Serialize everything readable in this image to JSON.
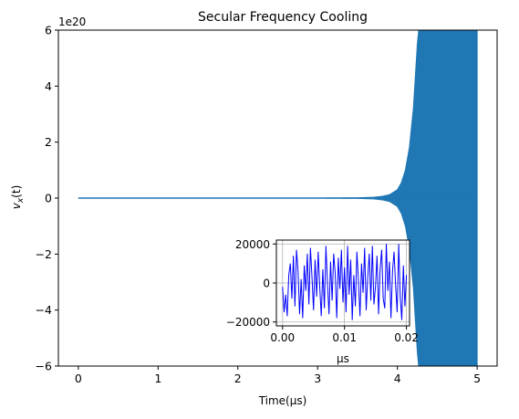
{
  "chart_data": [
    {
      "type": "line",
      "title": "Secular Frequency Cooling",
      "xlabel": "Time(μs)",
      "ylabel": "v_x(t)",
      "y_offset_label": "1e20",
      "xlim": [
        -0.25,
        5.25
      ],
      "ylim": [
        -6,
        6
      ],
      "x_ticks": [
        0,
        1,
        2,
        3,
        4,
        5
      ],
      "x_tick_labels": [
        "0",
        "1",
        "2",
        "3",
        "4",
        "5"
      ],
      "y_ticks": [
        -6,
        -4,
        -2,
        0,
        2,
        4,
        6
      ],
      "y_tick_labels": [
        "−6",
        "−4",
        "−2",
        "0",
        "2",
        "4",
        "6"
      ],
      "grid": false,
      "series": [
        {
          "color": "#1f77b4",
          "description": "oscillation envelope growing exponentially after ~3.5 μs",
          "x": [
            0.0,
            3.0,
            3.5,
            3.7,
            3.8,
            3.9,
            4.0,
            4.05,
            4.1,
            4.15,
            4.2,
            4.25,
            4.3,
            5.0
          ],
          "envelope": [
            0.0,
            0.0,
            0.01,
            0.03,
            0.06,
            0.12,
            0.3,
            0.55,
            1.0,
            1.8,
            3.2,
            5.5,
            7.0,
            7.0
          ]
        }
      ]
    },
    {
      "type": "line",
      "xlabel": "μs",
      "xlim": [
        -0.001,
        0.0205
      ],
      "ylim": [
        -22000,
        22000
      ],
      "x_ticks": [
        0.0,
        0.01,
        0.02
      ],
      "x_tick_labels": [
        "0.00",
        "0.01",
        "0.02"
      ],
      "y_ticks": [
        -20000,
        0,
        20000
      ],
      "y_tick_labels": [
        "−20000",
        "0",
        "20000"
      ],
      "grid": true,
      "series": [
        {
          "color": "#0000ff",
          "x": [
            0.0,
            0.00025,
            0.0005,
            0.00075,
            0.001,
            0.00125,
            0.0015,
            0.00175,
            0.002,
            0.00225,
            0.0025,
            0.00275,
            0.003,
            0.00325,
            0.0035,
            0.00375,
            0.004,
            0.00425,
            0.0045,
            0.00475,
            0.005,
            0.00525,
            0.0055,
            0.00575,
            0.006,
            0.00625,
            0.0065,
            0.00675,
            0.007,
            0.00725,
            0.0075,
            0.00775,
            0.008,
            0.00825,
            0.0085,
            0.00875,
            0.009,
            0.00925,
            0.0095,
            0.00975,
            0.01,
            0.01025,
            0.0105,
            0.01075,
            0.011,
            0.01125,
            0.0115,
            0.01175,
            0.012,
            0.01225,
            0.0125,
            0.01275,
            0.013,
            0.01325,
            0.0135,
            0.01375,
            0.014,
            0.01425,
            0.0145,
            0.01475,
            0.015,
            0.01525,
            0.0155,
            0.01575,
            0.016,
            0.01625,
            0.0165,
            0.01675,
            0.017,
            0.01725,
            0.0175,
            0.01775,
            0.018,
            0.01825,
            0.0185,
            0.01875,
            0.019,
            0.01925,
            0.0195,
            0.01975,
            0.02
          ],
          "y": [
            -2000,
            -15000,
            -6000,
            -17000,
            4000,
            10000,
            -8000,
            14000,
            -12000,
            17000,
            6000,
            -16000,
            2000,
            -18000,
            9000,
            -4000,
            15000,
            -11000,
            18000,
            3000,
            -14000,
            12000,
            -7000,
            16000,
            -2000,
            -17000,
            7000,
            -13000,
            19000,
            0,
            -16000,
            11000,
            -9000,
            15000,
            5000,
            -18000,
            13000,
            -3000,
            17000,
            -10000,
            8000,
            -15000,
            19000,
            -6000,
            12000,
            -19000,
            4000,
            -12000,
            16000,
            1000,
            -17000,
            10000,
            -5000,
            18000,
            -14000,
            3000,
            15000,
            -9000,
            19000,
            -11000,
            -2000,
            14000,
            -16000,
            7000,
            17000,
            -8000,
            -13000,
            20000,
            -4000,
            11000,
            -18000,
            6000,
            16000,
            -1000,
            -15000,
            20000,
            -7000,
            -19000,
            9000,
            -12000,
            4000
          ]
        }
      ]
    }
  ]
}
